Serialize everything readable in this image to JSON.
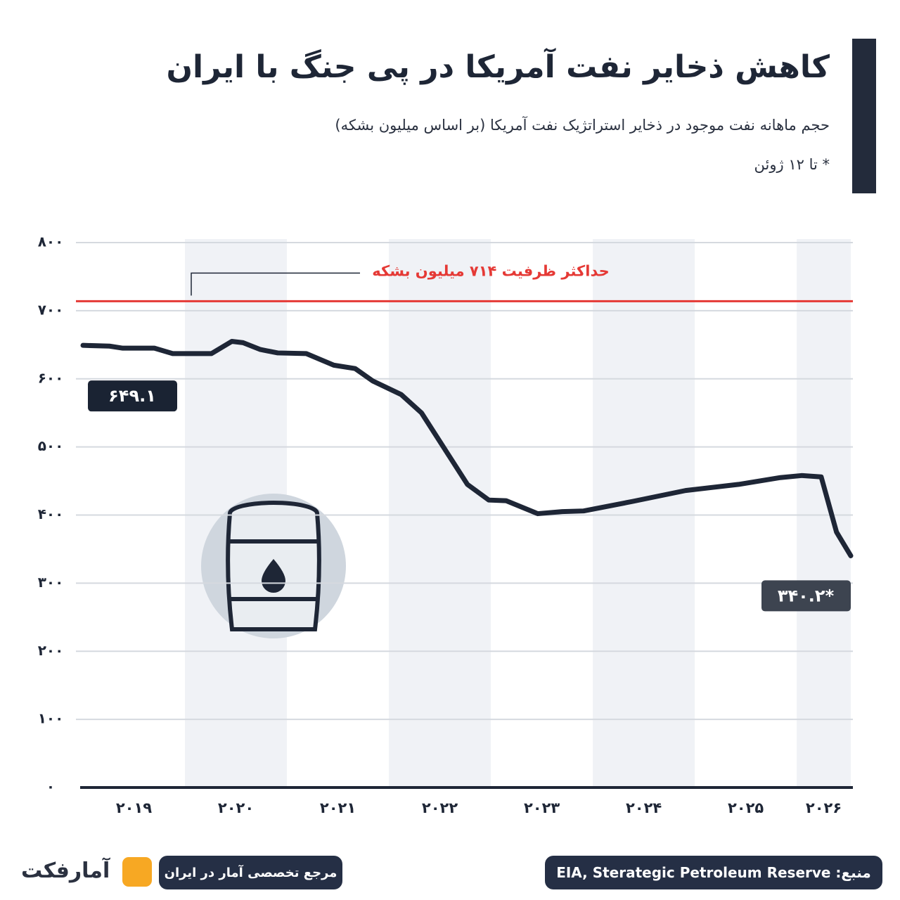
{
  "chart_data": {
    "type": "line",
    "title": "کاهش ذخایر نفت آمریکا در پی جنگ با ایران",
    "subtitle": "حجم ماهانه نفت موجود در ذخایر استراتژیک نفت آمریکا (بر اساس میلیون بشکه)",
    "note": "* تا ۱۲ ژوئن",
    "x": [
      2019.0,
      2019.26,
      2019.39,
      2019.7,
      2019.88,
      2020.26,
      2020.46,
      2020.57,
      2020.74,
      2020.91,
      2021.19,
      2021.46,
      2021.67,
      2021.84,
      2022.12,
      2022.32,
      2022.53,
      2022.77,
      2022.98,
      2023.15,
      2023.46,
      2023.7,
      2023.91,
      2024.39,
      2024.91,
      2025.43,
      2025.84,
      2026.05,
      2026.24,
      2026.39,
      2026.53
    ],
    "series": [
      {
        "name": "ذخایر استراتژیک نفت",
        "color": "#1e2636",
        "values": [
          649.1,
          648,
          645,
          645,
          637,
          637,
          655,
          653,
          643,
          638,
          637,
          620,
          615,
          597,
          577,
          550,
          501,
          445,
          422,
          421,
          402,
          405,
          406,
          420,
          436,
          445,
          455,
          458,
          456,
          375,
          340.2
        ],
        "value_labels": [
          "۶۴۹.۱",
          null,
          null,
          null,
          null,
          null,
          null,
          null,
          null,
          null,
          null,
          null,
          null,
          null,
          null,
          null,
          null,
          null,
          null,
          null,
          null,
          null,
          null,
          null,
          null,
          null,
          null,
          null,
          null,
          null,
          "۳۴۰.۲*"
        ]
      }
    ],
    "xlim": [
      2019.0,
      2026.53
    ],
    "xticks": [
      {
        "value": 2019,
        "label": "۲۰۱۹"
      },
      {
        "value": 2020,
        "label": "۲۰۲۰"
      },
      {
        "value": 2021,
        "label": "۲۰۲۱"
      },
      {
        "value": 2022,
        "label": "۲۰۲۲"
      },
      {
        "value": 2023,
        "label": "۲۰۲۳"
      },
      {
        "value": 2024,
        "label": "۲۰۲۴"
      },
      {
        "value": 2025,
        "label": "۲۰۲۵"
      },
      {
        "value": 2026,
        "label": "۲۰۲۶"
      }
    ],
    "ylim": [
      0,
      800
    ],
    "yticks": [
      {
        "value": 0,
        "label": "۰"
      },
      {
        "value": 100,
        "label": "۱۰۰"
      },
      {
        "value": 200,
        "label": "۲۰۰"
      },
      {
        "value": 300,
        "label": "۳۰۰"
      },
      {
        "value": 400,
        "label": "۴۰۰"
      },
      {
        "value": 500,
        "label": "۵۰۰"
      },
      {
        "value": 600,
        "label": "۶۰۰"
      },
      {
        "value": 700,
        "label": "۷۰۰"
      },
      {
        "value": 800,
        "label": "۸۰۰"
      }
    ],
    "grid": true,
    "reference": {
      "value": 714,
      "label": "حداکثر ظرفیت ۷۱۴ میلیون بشکه",
      "color": "#e53935"
    },
    "source": "منبع: EIA, Sterategic Petroleum Reserve",
    "tagline": "مرجع تخصصی آمار در ایران",
    "brand": "آمارفکت"
  }
}
